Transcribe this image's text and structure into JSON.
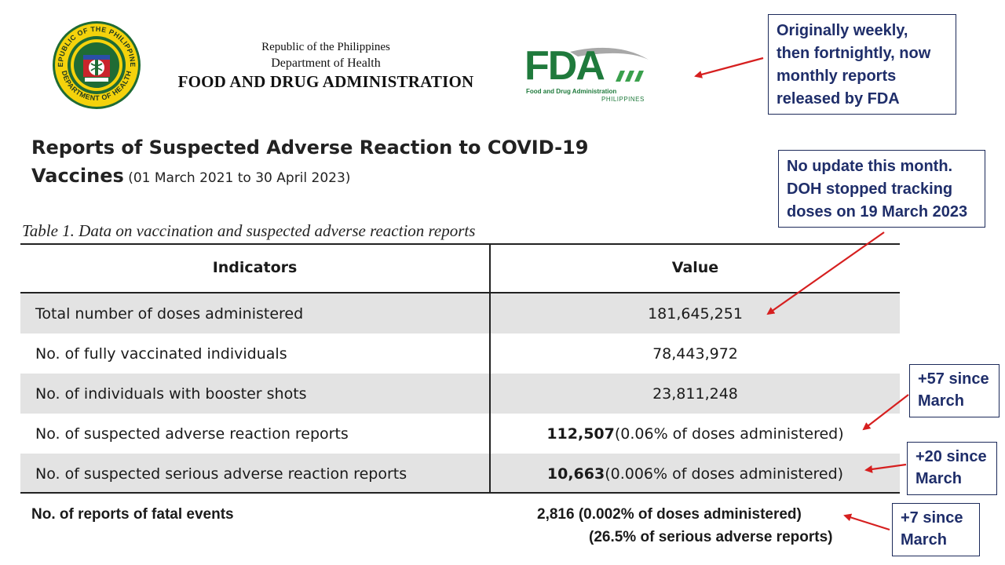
{
  "seal": {
    "ring_text_top": "REPUBLIC OF THE PHILIPPINES",
    "ring_text_bottom": "DEPARTMENT OF HEALTH"
  },
  "header": {
    "line1": "Republic of the Philippines",
    "line2": "Department of Health",
    "line3": "FOOD AND DRUG ADMINISTRATION"
  },
  "fda_logo": {
    "word": "FDA",
    "sub1": "Food and Drug Administration",
    "sub2": "PHILIPPINES"
  },
  "title": {
    "line1": "Reports of Suspected Adverse Reaction to COVID-19",
    "line2": "Vaccines",
    "period": " (01 March 2021 to 30 April 2023)"
  },
  "table": {
    "caption": "Table 1. Data on vaccination and suspected adverse reaction reports",
    "headers": {
      "indicators": "Indicators",
      "value": "Value"
    },
    "rows": [
      {
        "indicator": "Total number of doses administered",
        "value_bold": "",
        "value": "181,645,251"
      },
      {
        "indicator": "No. of fully vaccinated individuals",
        "value_bold": "",
        "value": "78,443,972"
      },
      {
        "indicator": "No. of individuals with booster shots",
        "value_bold": "",
        "value": "23,811,248"
      },
      {
        "indicator": "No. of suspected adverse reaction reports",
        "value_bold": "112,507",
        "value": " (0.06% of doses administered)"
      },
      {
        "indicator": "No. of suspected serious adverse reaction reports",
        "value_bold": "10,663",
        "value": " (0.006% of doses administered)"
      }
    ]
  },
  "fatal": {
    "label": "No. of reports of fatal events",
    "value_line1": "2,816 (0.002% of doses administered)",
    "value_line2": "(26.5% of serious adverse reports)"
  },
  "callouts": {
    "reporting": [
      "Originally weekly,",
      "then fortnightly, now",
      "monthly reports",
      "released by FDA"
    ],
    "no_update": [
      "No update this month.",
      "DOH stopped tracking",
      "doses on 19 March 2023"
    ],
    "adverse": [
      "+57 since",
      "March"
    ],
    "serious": [
      "+20 since",
      "March"
    ],
    "fatal": [
      "+7 since",
      "March"
    ]
  },
  "colors": {
    "fda_green": "#1f7a3c",
    "callout_text": "#1f2e6a",
    "arrow_red": "#d61f1f",
    "row_shade": "#e3e3e3"
  }
}
